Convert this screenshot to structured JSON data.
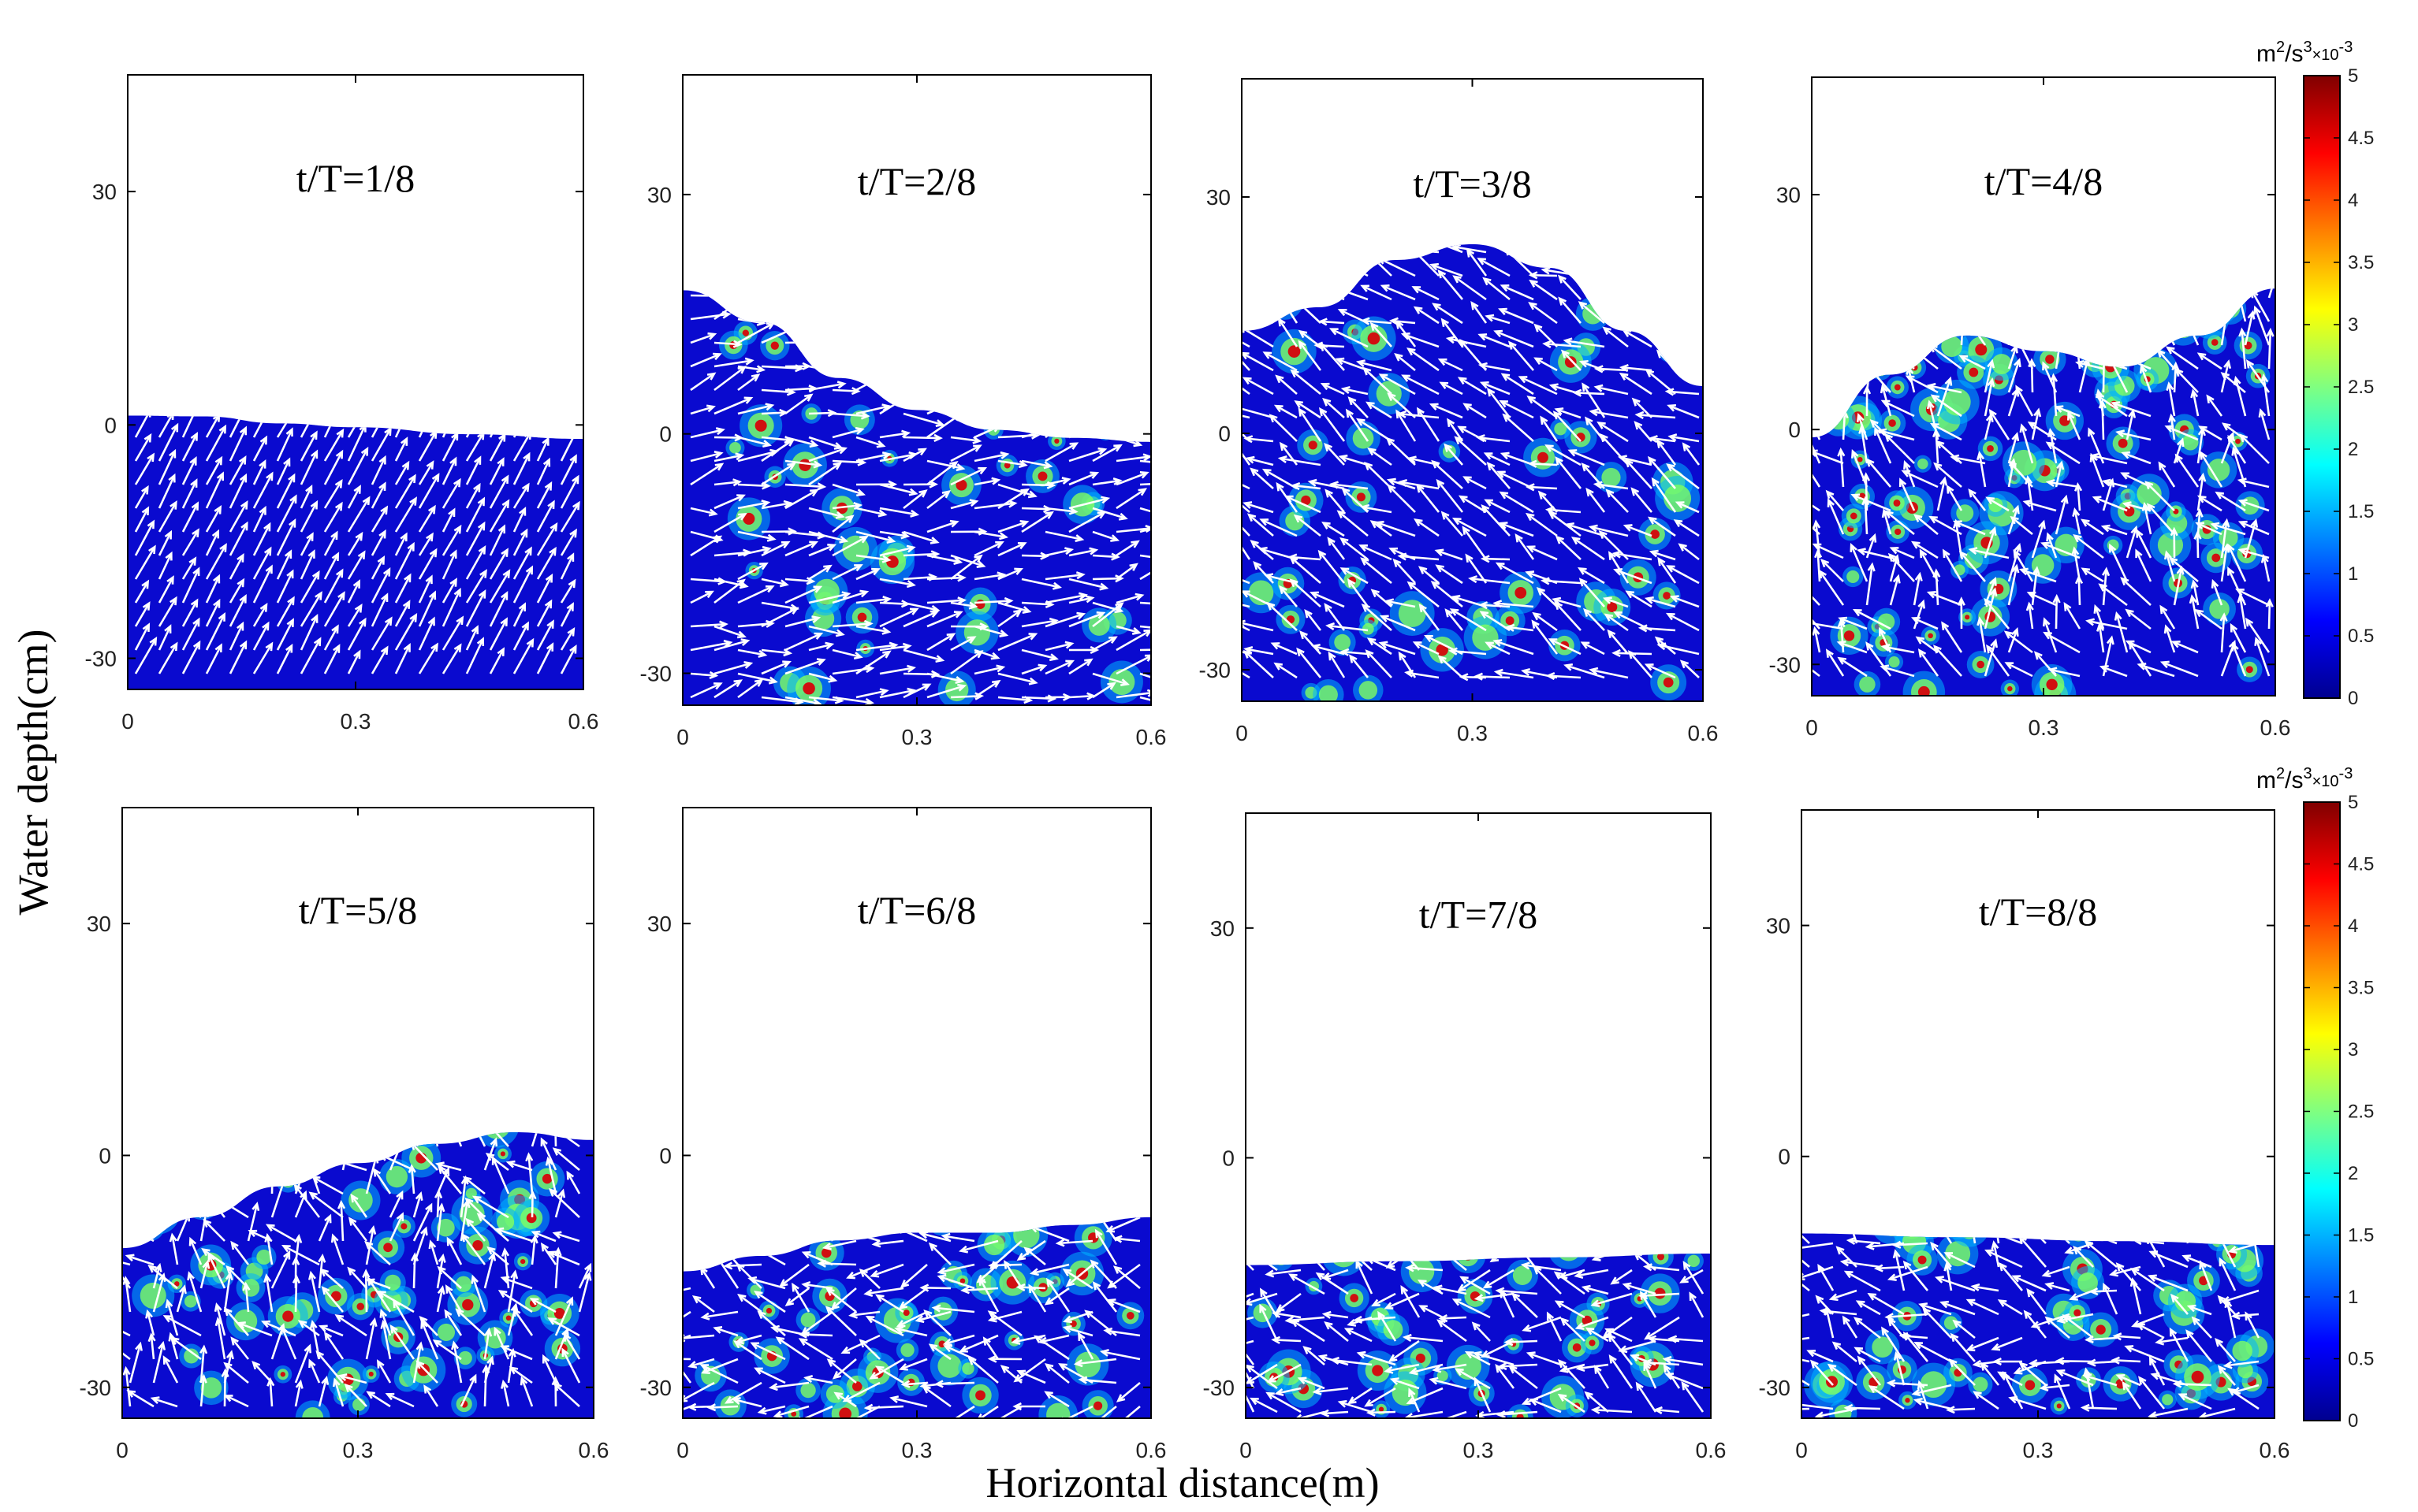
{
  "chart_data": {
    "type": "heatmap",
    "xlabel": "Horizontal distance(m)",
    "ylabel": "Water depth(cm)",
    "xlim": [
      0,
      0.6
    ],
    "ylim": [
      -34,
      45
    ],
    "xticks": [
      0,
      0.3,
      0.6
    ],
    "xtick_labels": [
      "0",
      "0.3",
      "0.6"
    ],
    "yticks": [
      30,
      0,
      -30
    ],
    "ytick_labels": [
      "30",
      "0",
      "-30"
    ],
    "colorbar": {
      "unit": "m",
      "unit_exp": "2",
      "unit_mid": "/s",
      "unit_exp2": "3",
      "scale": "×10",
      "scale_exp": "-3",
      "range": [
        0,
        5
      ],
      "ticks": [
        "0",
        "0.5",
        "1",
        "1.5",
        "2",
        "2.5",
        "3",
        "3.5",
        "4",
        "4.5",
        "5"
      ],
      "colormap": [
        "#00008f",
        "#0000ff",
        "#0080ff",
        "#00ffff",
        "#80ff80",
        "#ffff00",
        "#ff8000",
        "#ff0000",
        "#800000"
      ]
    },
    "panels": [
      {
        "title": "t/T=1/8",
        "surface": [
          [
            0,
            1.2
          ],
          [
            0.1,
            1.1
          ],
          [
            0.2,
            0.2
          ],
          [
            0.3,
            -0.3
          ],
          [
            0.45,
            -1.2
          ],
          [
            0.6,
            -1.8
          ]
        ],
        "flow_angle_deg": 62,
        "energy": "low"
      },
      {
        "title": "t/T=2/8",
        "surface": [
          [
            0,
            18
          ],
          [
            0.1,
            14
          ],
          [
            0.2,
            7
          ],
          [
            0.3,
            3
          ],
          [
            0.4,
            0.5
          ],
          [
            0.5,
            -0.5
          ],
          [
            0.6,
            -1
          ]
        ],
        "flow_angle_deg": 10,
        "energy": "medium"
      },
      {
        "title": "t/T=3/8",
        "surface": [
          [
            0,
            13
          ],
          [
            0.1,
            16
          ],
          [
            0.2,
            22
          ],
          [
            0.3,
            24
          ],
          [
            0.4,
            21
          ],
          [
            0.5,
            13
          ],
          [
            0.6,
            6
          ]
        ],
        "flow_angle_deg": 150,
        "energy": "medium"
      },
      {
        "title": "t/T=4/8",
        "surface": [
          [
            0,
            -1
          ],
          [
            0.1,
            7
          ],
          [
            0.2,
            12
          ],
          [
            0.3,
            10
          ],
          [
            0.4,
            8
          ],
          [
            0.5,
            12
          ],
          [
            0.6,
            18
          ]
        ],
        "flow_angle_deg": 120,
        "energy": "high"
      },
      {
        "title": "t/T=5/8",
        "surface": [
          [
            0,
            -12
          ],
          [
            0.1,
            -8
          ],
          [
            0.2,
            -4
          ],
          [
            0.3,
            -1
          ],
          [
            0.4,
            1.5
          ],
          [
            0.5,
            3
          ],
          [
            0.6,
            2
          ]
        ],
        "flow_angle_deg": 115,
        "energy": "high"
      },
      {
        "title": "t/T=6/8",
        "surface": [
          [
            0,
            -15
          ],
          [
            0.1,
            -13
          ],
          [
            0.2,
            -11
          ],
          [
            0.3,
            -10
          ],
          [
            0.4,
            -10
          ],
          [
            0.5,
            -9
          ],
          [
            0.6,
            -8
          ]
        ],
        "flow_angle_deg": 170,
        "energy": "high"
      },
      {
        "title": "t/T=7/8",
        "surface": [
          [
            0,
            -14
          ],
          [
            0.2,
            -13.5
          ],
          [
            0.4,
            -13
          ],
          [
            0.6,
            -12.5
          ]
        ],
        "flow_angle_deg": 165,
        "energy": "high"
      },
      {
        "title": "t/T=8/8",
        "surface": [
          [
            0,
            -10
          ],
          [
            0.2,
            -10.5
          ],
          [
            0.4,
            -11
          ],
          [
            0.6,
            -11.5
          ]
        ],
        "flow_angle_deg": 150,
        "energy": "high"
      }
    ]
  }
}
